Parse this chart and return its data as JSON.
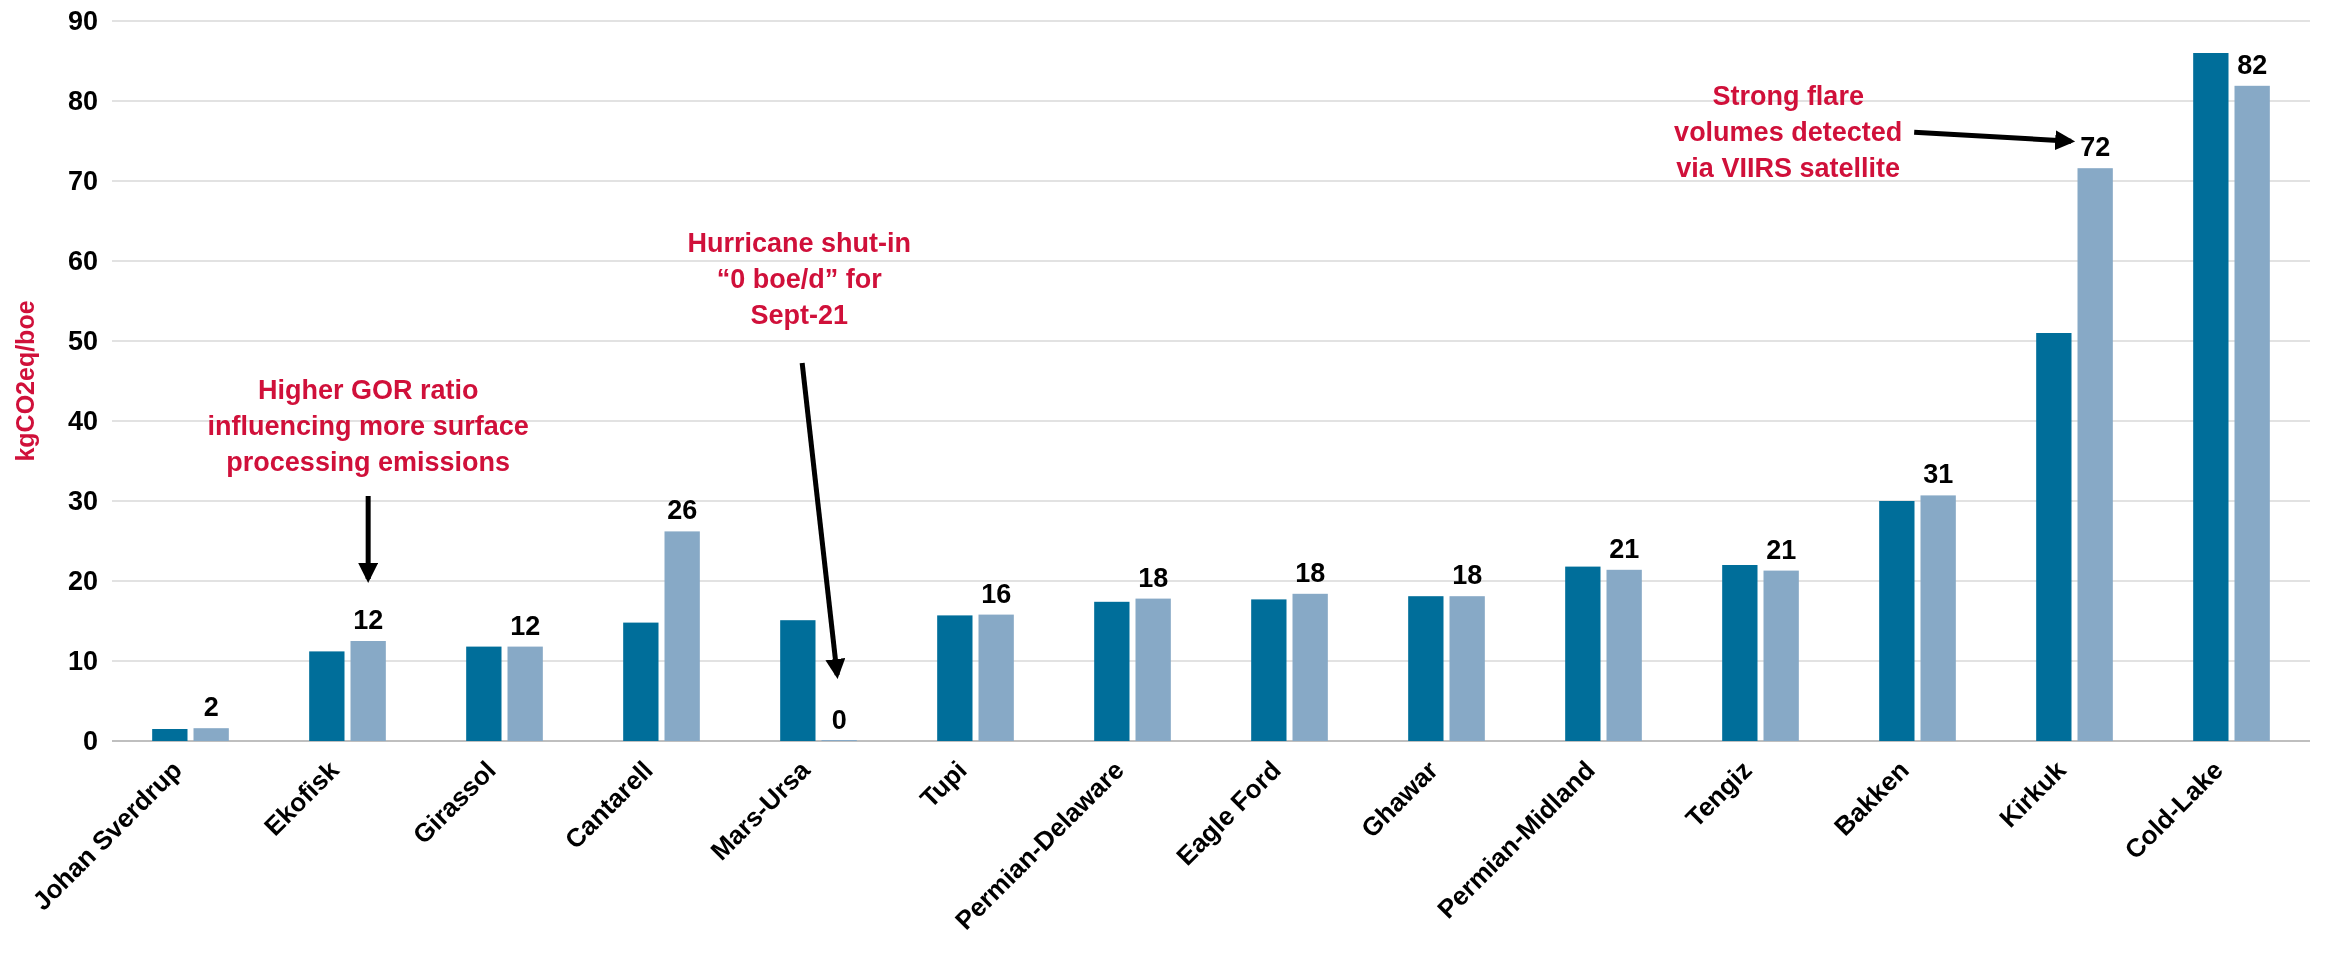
{
  "chart_data": {
    "type": "bar",
    "ylabel": "kgCO2eq/boe",
    "categories": [
      "Johan Sverdrup",
      "Ekofisk",
      "Girassol",
      "Cantarell",
      "Mars-Ursa",
      "Tupi",
      "Permian-Delaware",
      "Eagle Ford",
      "Ghawar",
      "Permian-Midland",
      "Tengiz",
      "Bakken",
      "Kirkuk",
      "Cold-Lake"
    ],
    "series": [
      {
        "color": "#006e9a",
        "values": [
          1.5,
          11.2,
          11.8,
          14.8,
          15.1,
          15.7,
          17.4,
          17.7,
          18.1,
          21.8,
          22,
          30,
          51,
          86
        ]
      },
      {
        "color": "#87a9c6",
        "values": [
          1.6,
          12.5,
          11.8,
          26.2,
          0,
          15.8,
          17.8,
          18.4,
          18.1,
          21.4,
          21.3,
          30.7,
          71.6,
          81.9
        ],
        "value_labels": [
          "2",
          "12",
          "12",
          "26",
          "0",
          "16",
          "18",
          "18",
          "18",
          "21",
          "21",
          "31",
          "72",
          "82"
        ]
      }
    ],
    "ylim": [
      0,
      90
    ],
    "yticks": [
      0,
      10,
      20,
      30,
      40,
      50,
      60,
      70,
      80,
      90
    ],
    "grid": "y",
    "annotations": [
      "Higher GOR ratio\ninfluencing more surface\nprocessing emissions",
      "Hurricane shut-in\n“0 boe/d” for\nSept-21",
      "Strong flare\nvolumes detected\nvia VIIRS satellite"
    ]
  }
}
